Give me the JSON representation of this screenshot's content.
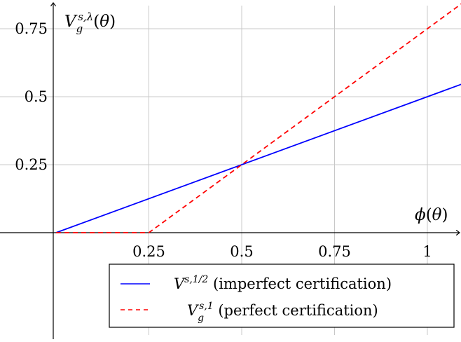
{
  "chart_data": {
    "type": "line",
    "xlabel": "ϕ(θ)",
    "ylabel": "V_g^{s,λ}(θ)",
    "xlim": [
      -0.05,
      1.1
    ],
    "ylim": [
      -0.5,
      0.86
    ],
    "x_ticks": [
      0.25,
      0.5,
      0.75,
      1
    ],
    "x_tick_labels": [
      "0.25",
      "0.5",
      "0.75",
      "1"
    ],
    "y_ticks": [
      0.25,
      0.5,
      0.75
    ],
    "y_tick_labels": [
      "0.25",
      "0.5",
      "0.75"
    ],
    "grid": true,
    "legend_position": "bottom-right",
    "series": [
      {
        "name": "V^{s,1/2} (imperfect certification)",
        "color": "#0000ff",
        "style": "solid",
        "x": [
          0,
          1.1
        ],
        "y": [
          0,
          0.55
        ]
      },
      {
        "name": "V_g^{s,1} (perfect certification)",
        "color": "#ff0000",
        "style": "dashed",
        "x": [
          0,
          0.25,
          1.1
        ],
        "y": [
          0,
          0,
          0.85
        ]
      }
    ]
  }
}
